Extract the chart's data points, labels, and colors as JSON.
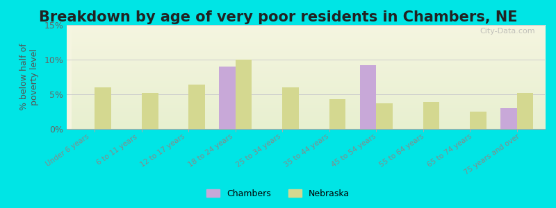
{
  "title": "Breakdown by age of very poor residents in Chambers, NE",
  "ylabel": "% below half of\npoverty level",
  "categories": [
    "Under 6 years",
    "6 to 11 years",
    "12 to 17 years",
    "18 to 24 years",
    "25 to 34 years",
    "35 to 44 years",
    "45 to 54 years",
    "55 to 64 years",
    "65 to 74 years",
    "75 years and over"
  ],
  "chambers_values": [
    null,
    null,
    null,
    9.0,
    null,
    null,
    9.2,
    null,
    null,
    3.0
  ],
  "nebraska_values": [
    6.0,
    5.2,
    6.4,
    10.0,
    6.0,
    4.3,
    3.7,
    3.9,
    2.5,
    5.2
  ],
  "chambers_color": "#c8a8d8",
  "nebraska_color": "#d4d890",
  "background_top": "#f5f5e0",
  "background_bottom": "#e8f0d0",
  "outer_background": "#00e5e5",
  "ylim": [
    0,
    15
  ],
  "yticks": [
    0,
    5,
    10,
    15
  ],
  "yticklabels": [
    "0%",
    "5%",
    "10%",
    "15%"
  ],
  "title_fontsize": 15,
  "bar_width": 0.35,
  "watermark": "City-Data.com"
}
